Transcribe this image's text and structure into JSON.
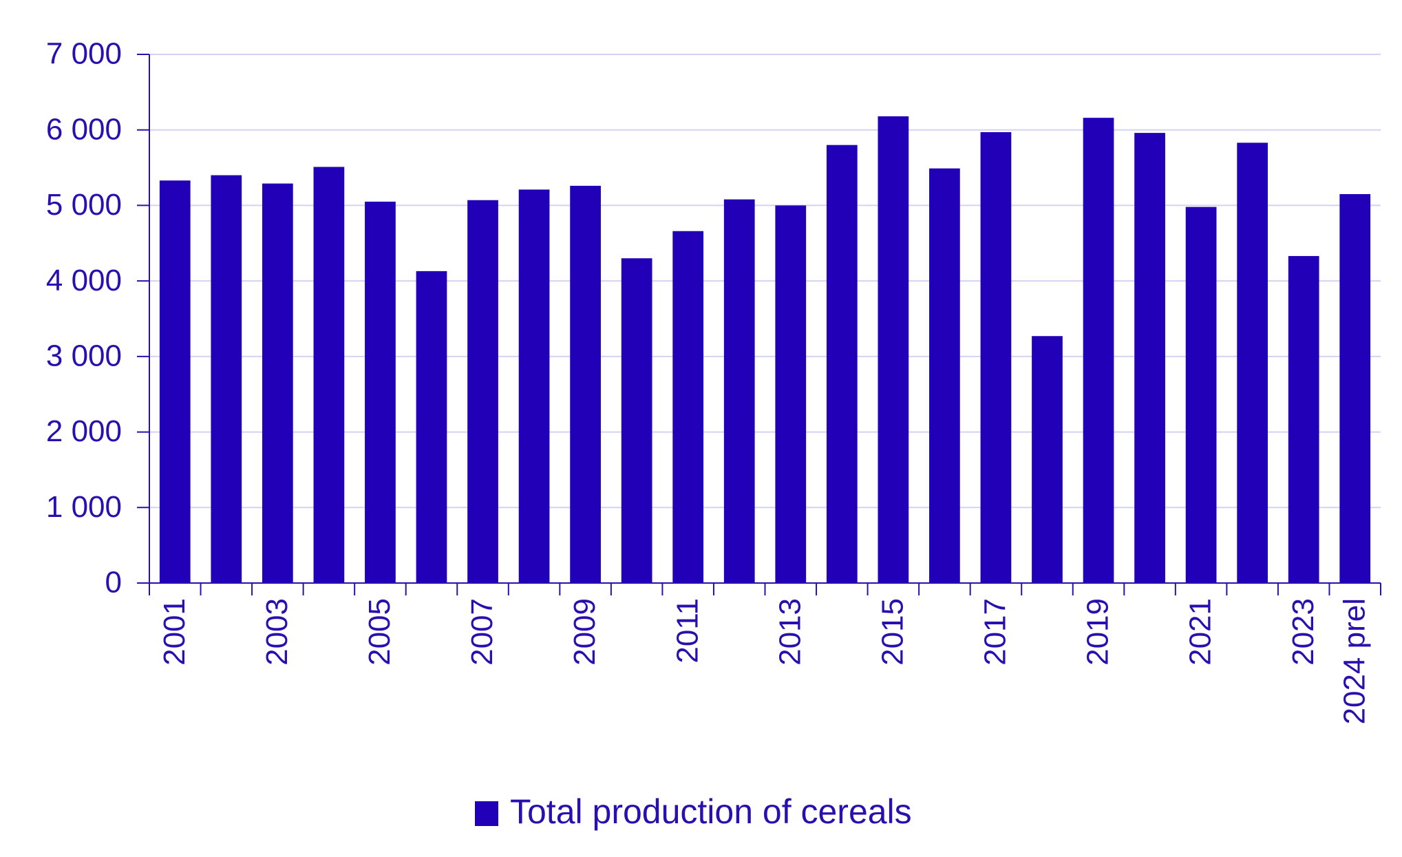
{
  "chart_data": {
    "type": "bar",
    "categories": [
      "2001",
      null,
      "2003",
      null,
      "2005",
      null,
      "2007",
      null,
      "2009",
      null,
      "2011",
      null,
      "2013",
      null,
      "2015",
      null,
      "2017",
      null,
      "2019",
      null,
      "2021",
      null,
      "2023",
      "2024 prel"
    ],
    "series": [
      {
        "name": "Total production of cereals",
        "color": "#2200b8",
        "values": [
          5330,
          5400,
          5290,
          5510,
          5050,
          4130,
          5070,
          5210,
          5260,
          4300,
          4660,
          5080,
          5000,
          5800,
          6180,
          5490,
          5970,
          3270,
          6160,
          5960,
          4980,
          5830,
          4330,
          5150
        ]
      }
    ],
    "ylim": [
      0,
      7000
    ],
    "yticks": [
      0,
      {
        "value": 1000,
        "label": "1 000"
      },
      {
        "value": 2000,
        "label": "2 000"
      },
      {
        "value": 3000,
        "label": "3 000"
      },
      {
        "value": 4000,
        "label": "4 000"
      },
      {
        "value": 5000,
        "label": "5 000"
      },
      {
        "value": 6000,
        "label": "6 000"
      },
      {
        "value": 7000,
        "label": "7 000"
      }
    ],
    "grid": true,
    "legend": "bottom"
  }
}
